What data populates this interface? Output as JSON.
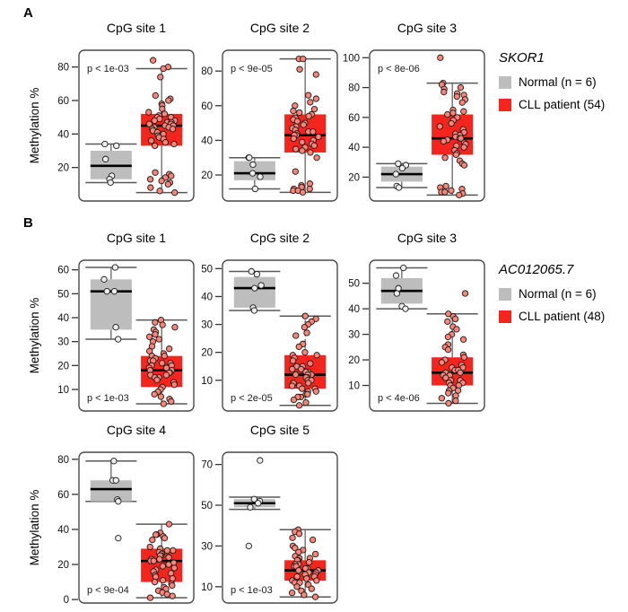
{
  "chart_data": {
    "type": "boxplot",
    "ylabel": "Methylation %",
    "colors": {
      "normal_box": "#bdbdbd",
      "cll_box": "#f5241d",
      "normal_point": "#ededed",
      "cll_point": "#f98478",
      "whisker": "#595959",
      "median": "#000000",
      "frame": "#4a4a4a"
    },
    "panels": [
      {
        "label": "A",
        "gene": "SKOR1",
        "legend": [
          "Normal (n = 6)",
          "CLL patient (54)"
        ],
        "plots": [
          {
            "title": "CpG site 1",
            "p_label": "p < 1e-03",
            "p_pos": "top",
            "yticks": [
              20,
              40,
              60,
              80
            ],
            "ylim": [
              0,
              90
            ],
            "groups": [
              {
                "key": "normal",
                "name": "Normal",
                "jitter": 7,
                "box": {
                  "low": 11,
                  "q1": 13,
                  "median": 21,
                  "q3": 30,
                  "high": 34
                },
                "points": [
                  34,
                  33,
                  25,
                  15,
                  13,
                  11
                ]
              },
              {
                "key": "cll",
                "name": "CLL patient",
                "jitter": 15,
                "box": {
                  "low": 5,
                  "q1": 33,
                  "median": 45,
                  "q3": 52,
                  "high": 79
                },
                "points": [
                  84,
                  80,
                  79,
                  74,
                  63,
                  61,
                  60,
                  58,
                  57,
                  55,
                  53,
                  52,
                  52,
                  51,
                  50,
                  50,
                  49,
                  48,
                  48,
                  47,
                  47,
                  46,
                  46,
                  45,
                  45,
                  44,
                  44,
                  43,
                  43,
                  42,
                  41,
                  40,
                  39,
                  38,
                  37,
                  36,
                  35,
                  34,
                  33,
                  17,
                  16,
                  15,
                  14,
                  13,
                  12,
                  11,
                  10,
                  8,
                  6,
                  5
                ]
              }
            ]
          },
          {
            "title": "CpG site 2",
            "p_label": "p < 9e-05",
            "p_pos": "top",
            "yticks": [
              20,
              40,
              60,
              80
            ],
            "ylim": [
              5,
              92
            ],
            "groups": [
              {
                "key": "normal",
                "name": "Normal",
                "jitter": 7,
                "box": {
                  "low": 12,
                  "q1": 17,
                  "median": 21,
                  "q3": 28,
                  "high": 30
                },
                "points": [
                  30,
                  30,
                  26,
                  21,
                  19,
                  12
                ]
              },
              {
                "key": "cll",
                "name": "CLL patient",
                "jitter": 15,
                "box": {
                  "low": 10,
                  "q1": 33,
                  "median": 43,
                  "q3": 55,
                  "high": 87
                },
                "points": [
                  87,
                  87,
                  81,
                  78,
                  66,
                  64,
                  62,
                  60,
                  58,
                  57,
                  56,
                  55,
                  54,
                  53,
                  52,
                  51,
                  50,
                  49,
                  48,
                  47,
                  46,
                  45,
                  45,
                  44,
                  43,
                  43,
                  42,
                  41,
                  40,
                  39,
                  38,
                  37,
                  36,
                  35,
                  34,
                  33,
                  30,
                  22,
                  15,
                  14,
                  13,
                  12,
                  12,
                  11,
                  11,
                  10
                ]
              }
            ]
          },
          {
            "title": "CpG site 3",
            "p_label": "p < 8e-06",
            "p_pos": "top",
            "yticks": [
              20,
              40,
              60,
              80,
              100
            ],
            "ylim": [
              4,
              105
            ],
            "groups": [
              {
                "key": "normal",
                "name": "Normal",
                "jitter": 7,
                "box": {
                  "low": 13,
                  "q1": 17,
                  "median": 22,
                  "q3": 27,
                  "high": 29
                },
                "points": [
                  29,
                  28,
                  26,
                  22,
                  14,
                  13
                ]
              },
              {
                "key": "cll",
                "name": "CLL patient",
                "jitter": 15,
                "box": {
                  "low": 8,
                  "q1": 35,
                  "median": 46,
                  "q3": 62,
                  "high": 83
                },
                "points": [
                  100,
                  83,
                  82,
                  80,
                  79,
                  77,
                  76,
                  75,
                  74,
                  72,
                  70,
                  65,
                  64,
                  63,
                  62,
                  60,
                  58,
                  56,
                  54,
                  52,
                  50,
                  49,
                  48,
                  47,
                  46,
                  46,
                  45,
                  44,
                  43,
                  42,
                  41,
                  40,
                  38,
                  36,
                  35,
                  33,
                  31,
                  29,
                  28,
                  14,
                  13,
                  12,
                  11,
                  10,
                  10,
                  9,
                  8
                ]
              }
            ]
          }
        ]
      },
      {
        "label": "B",
        "gene": "AC012065.7",
        "legend": [
          "Normal (n = 6)",
          "CLL patient (48)"
        ],
        "plots": [
          {
            "title": "CpG site 1",
            "p_label": "p < 1e-03",
            "p_pos": "bottom",
            "yticks": [
              10,
              20,
              30,
              40,
              50,
              60
            ],
            "ylim": [
              1,
              64
            ],
            "groups": [
              {
                "key": "normal",
                "name": "Normal",
                "jitter": 8,
                "box": {
                  "low": 31,
                  "q1": 35,
                  "median": 51,
                  "q3": 56,
                  "high": 61
                },
                "points": [
                  61,
                  56,
                  51,
                  51,
                  36,
                  31
                ]
              },
              {
                "key": "cll",
                "name": "CLL patient",
                "jitter": 15,
                "box": {
                  "low": 4,
                  "q1": 11,
                  "median": 18,
                  "q3": 24,
                  "high": 39
                },
                "points": [
                  39,
                  38,
                  37,
                  36,
                  35,
                  34,
                  33,
                  32,
                  31,
                  30,
                  28,
                  27,
                  26,
                  25,
                  24,
                  24,
                  23,
                  22,
                  22,
                  21,
                  21,
                  20,
                  20,
                  19,
                  19,
                  18,
                  18,
                  17,
                  17,
                  16,
                  16,
                  15,
                  15,
                  14,
                  13,
                  12,
                  11,
                  10,
                  9,
                  8,
                  7,
                  6,
                  5,
                  4
                ]
              }
            ]
          },
          {
            "title": "CpG site 2",
            "p_label": "p < 2e-05",
            "p_pos": "bottom",
            "yticks": [
              10,
              20,
              30,
              40,
              50
            ],
            "ylim": [
              -1,
              53
            ],
            "groups": [
              {
                "key": "normal",
                "name": "Normal",
                "jitter": 8,
                "box": {
                  "low": 35,
                  "q1": 36,
                  "median": 43,
                  "q3": 47,
                  "high": 49
                },
                "points": [
                  49,
                  48,
                  44,
                  43,
                  36,
                  35
                ]
              },
              {
                "key": "cll",
                "name": "CLL patient",
                "jitter": 15,
                "dashed_upper": true,
                "box": {
                  "low": 1,
                  "q1": 7,
                  "median": 12,
                  "q3": 19,
                  "high": 33
                },
                "points": [
                  33,
                  33,
                  32,
                  31,
                  30,
                  29,
                  27,
                  26,
                  23,
                  22,
                  20,
                  19,
                  19,
                  18,
                  17,
                  16,
                  15,
                  15,
                  14,
                  14,
                  13,
                  13,
                  12,
                  12,
                  12,
                  11,
                  11,
                  10,
                  10,
                  9,
                  9,
                  8,
                  8,
                  7,
                  7,
                  6,
                  6,
                  5,
                  5,
                  4,
                  4,
                  3,
                  2,
                  1
                ]
              }
            ]
          },
          {
            "title": "CpG site 3",
            "p_label": "p < 4e-06",
            "p_pos": "bottom",
            "yticks": [
              10,
              20,
              30,
              40,
              50
            ],
            "ylim": [
              0,
              59
            ],
            "groups": [
              {
                "key": "normal",
                "name": "Normal",
                "jitter": 8,
                "box": {
                  "low": 40,
                  "q1": 42,
                  "median": 47,
                  "q3": 52,
                  "high": 56
                },
                "points": [
                  56,
                  53,
                  48,
                  46,
                  41,
                  40
                ]
              },
              {
                "key": "cll",
                "name": "CLL patient",
                "jitter": 15,
                "box": {
                  "low": 3,
                  "q1": 10,
                  "median": 15,
                  "q3": 21,
                  "high": 38
                },
                "points": [
                  46,
                  38,
                  37,
                  36,
                  35,
                  33,
                  32,
                  30,
                  29,
                  28,
                  26,
                  25,
                  24,
                  22,
                  21,
                  20,
                  19,
                  18,
                  17,
                  17,
                  16,
                  16,
                  15,
                  15,
                  14,
                  14,
                  13,
                  13,
                  12,
                  12,
                  11,
                  11,
                  10,
                  10,
                  9,
                  8,
                  8,
                  7,
                  6,
                  5,
                  4,
                  3
                ]
              }
            ]
          },
          {
            "title": "CpG site 4",
            "p_label": "p < 9e-04",
            "p_pos": "bottom",
            "yticks": [
              0,
              20,
              40,
              60,
              80
            ],
            "ylim": [
              -2,
              84
            ],
            "groups": [
              {
                "key": "normal",
                "name": "Normal",
                "jitter": 8,
                "box": {
                  "low": 56,
                  "q1": 56,
                  "median": 63,
                  "q3": 68,
                  "high": 79
                },
                "points": [
                  79,
                  68,
                  68,
                  57,
                  56,
                  35
                ]
              },
              {
                "key": "cll",
                "name": "CLL patient",
                "jitter": 15,
                "box": {
                  "low": 1,
                  "q1": 10,
                  "median": 22,
                  "q3": 29,
                  "high": 43
                },
                "points": [
                  43,
                  38,
                  37,
                  37,
                  36,
                  35,
                  34,
                  30,
                  29,
                  28,
                  28,
                  27,
                  26,
                  25,
                  25,
                  24,
                  23,
                  23,
                  22,
                  22,
                  21,
                  20,
                  19,
                  18,
                  17,
                  16,
                  15,
                  14,
                  13,
                  12,
                  11,
                  10,
                  9,
                  8,
                  7,
                  6,
                  5,
                  4,
                  3,
                  2,
                  1
                ]
              }
            ]
          },
          {
            "title": "CpG site 5",
            "p_label": "p < 1e-03",
            "p_pos": "bottom",
            "yticks": [
              10,
              30,
              50,
              70
            ],
            "ylim": [
              2,
              76
            ],
            "groups": [
              {
                "key": "normal",
                "name": "Normal",
                "jitter": 8,
                "box": {
                  "low": 48,
                  "q1": 49,
                  "median": 51,
                  "q3": 53,
                  "high": 54
                },
                "points": [
                  72,
                  53,
                  52,
                  51,
                  49,
                  30
                ]
              },
              {
                "key": "cll",
                "name": "CLL patient",
                "jitter": 15,
                "box": {
                  "low": 5,
                  "q1": 13,
                  "median": 18,
                  "q3": 23,
                  "high": 38
                },
                "points": [
                  38,
                  37,
                  36,
                  34,
                  33,
                  30,
                  29,
                  28,
                  27,
                  26,
                  25,
                  24,
                  24,
                  23,
                  23,
                  22,
                  21,
                  21,
                  20,
                  20,
                  19,
                  19,
                  18,
                  18,
                  17,
                  17,
                  16,
                  16,
                  15,
                  15,
                  14,
                  13,
                  13,
                  12,
                  12,
                  11,
                  10,
                  9,
                  8,
                  7,
                  6,
                  5
                ]
              }
            ]
          }
        ]
      }
    ]
  }
}
